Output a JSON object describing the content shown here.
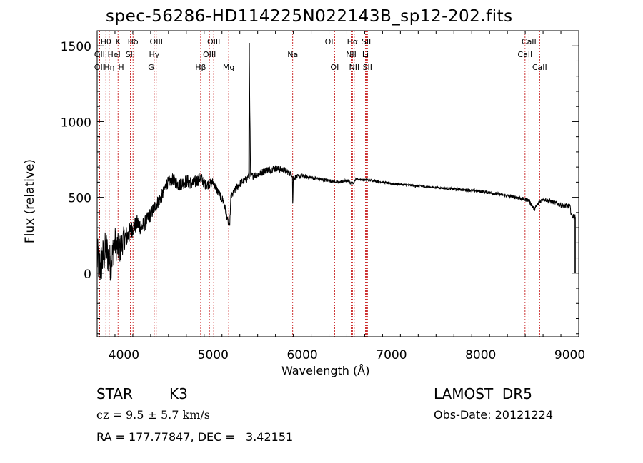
{
  "chart_data": {
    "type": "line",
    "title": "spec-56286-HD114225N022143B_sp12-202.fits",
    "xlabel": "Wavelength (Å)",
    "ylabel": "Flux (relative)",
    "xlim": [
      3700,
      9100
    ],
    "ylim": [
      -420,
      1600
    ],
    "x_ticks": [
      4000,
      5000,
      6000,
      7000,
      8000,
      9000
    ],
    "x_tick_labels": [
      "4000",
      "5000",
      "6000",
      "7000",
      "8000",
      "9000"
    ],
    "y_ticks": [
      0,
      500,
      1000,
      1500
    ],
    "y_tick_labels": [
      "0",
      "500",
      "1000",
      "1500"
    ],
    "grid": false,
    "spectrum": {
      "x": [
        3700,
        3730,
        3760,
        3800,
        3850,
        3900,
        3950,
        4000,
        4050,
        4100,
        4150,
        4200,
        4250,
        4300,
        4340,
        4380,
        4420,
        4480,
        4550,
        4620,
        4700,
        4780,
        4860,
        4920,
        5000,
        5060,
        5120,
        5170,
        5185,
        5200,
        5260,
        5320,
        5380,
        5400,
        5405,
        5420,
        5500,
        5600,
        5700,
        5800,
        5890,
        5893,
        5900,
        6000,
        6100,
        6200,
        6300,
        6400,
        6500,
        6563,
        6600,
        6700,
        6800,
        7000,
        7200,
        7400,
        7600,
        7800,
        8000,
        8200,
        8400,
        8540,
        8600,
        8662,
        8700,
        8800,
        8900,
        9000,
        9020,
        9060
      ],
      "y": [
        100,
        40,
        90,
        160,
        60,
        200,
        150,
        230,
        250,
        300,
        330,
        300,
        340,
        390,
        430,
        470,
        500,
        590,
        620,
        580,
        610,
        590,
        630,
        580,
        600,
        530,
        470,
        330,
        300,
        500,
        560,
        600,
        620,
        650,
        1520,
        640,
        650,
        680,
        690,
        680,
        650,
        420,
        630,
        640,
        630,
        620,
        610,
        600,
        610,
        590,
        620,
        615,
        610,
        590,
        580,
        570,
        560,
        550,
        540,
        520,
        500,
        480,
        420,
        470,
        490,
        470,
        450,
        440,
        380,
        370
      ],
      "noise": [
        140,
        150,
        140,
        130,
        120,
        110,
        100,
        80,
        70,
        60,
        60,
        55,
        50,
        50,
        45,
        45,
        45,
        40,
        40,
        45,
        45,
        45,
        40,
        35,
        30,
        30,
        30,
        20,
        20,
        25,
        25,
        25,
        25,
        25,
        0,
        25,
        25,
        25,
        25,
        22,
        20,
        0,
        18,
        16,
        14,
        12,
        12,
        10,
        10,
        10,
        8,
        8,
        8,
        8,
        8,
        8,
        8,
        10,
        10,
        12,
        12,
        14,
        14,
        14,
        14,
        14,
        16,
        18,
        18,
        18
      ]
    },
    "lines": [
      {
        "label": "Hθ",
        "wave": 3798,
        "row": 0
      },
      {
        "label": "K",
        "wave": 3934,
        "row": 0
      },
      {
        "label": "Hδ",
        "wave": 4102,
        "row": 0
      },
      {
        "label": "OIII",
        "wave": 4363,
        "row": 0
      },
      {
        "label": "OIII",
        "wave": 5007,
        "row": 0
      },
      {
        "label": "OI",
        "wave": 6300,
        "row": 0
      },
      {
        "label": "Hα",
        "wave": 6563,
        "row": 0
      },
      {
        "label": "SII",
        "wave": 6717,
        "row": 0
      },
      {
        "label": "CaII",
        "wave": 8542,
        "row": 0
      },
      {
        "label": "OII",
        "wave": 3727,
        "row": 1
      },
      {
        "label": "HeI",
        "wave": 3889,
        "row": 1
      },
      {
        "label": "SII",
        "wave": 4072,
        "row": 1
      },
      {
        "label": "Hγ",
        "wave": 4340,
        "row": 1
      },
      {
        "label": "OIII",
        "wave": 4959,
        "row": 1
      },
      {
        "label": "Na",
        "wave": 5893,
        "row": 1
      },
      {
        "label": "NII",
        "wave": 6548,
        "row": 1
      },
      {
        "label": "Li",
        "wave": 6708,
        "row": 1
      },
      {
        "label": "CaII",
        "wave": 8498,
        "row": 1
      },
      {
        "label": "OII",
        "wave": 3727,
        "row": 2
      },
      {
        "label": "Hη",
        "wave": 3835,
        "row": 2
      },
      {
        "label": "H",
        "wave": 3969,
        "row": 2
      },
      {
        "label": "G",
        "wave": 4305,
        "row": 2
      },
      {
        "label": "Hβ",
        "wave": 4861,
        "row": 2
      },
      {
        "label": "Mg",
        "wave": 5175,
        "row": 2
      },
      {
        "label": "OI",
        "wave": 6363,
        "row": 2
      },
      {
        "label": "NII",
        "wave": 6583,
        "row": 2
      },
      {
        "label": "SII",
        "wave": 6731,
        "row": 2
      },
      {
        "label": "CaII",
        "wave": 8662,
        "row": 2
      }
    ],
    "colors": {
      "spectrum": "#000000",
      "lines": "#c00000",
      "axes": "#000000"
    }
  },
  "info": {
    "class_label": "STAR",
    "subclass": "K3",
    "survey": "LAMOST  DR5",
    "cz_text": "cz = 9.5 ± 5.7 km/s",
    "obs_date": "Obs-Date: 20121224",
    "radec": "RA = 177.77847, DEC =   3.42151"
  }
}
